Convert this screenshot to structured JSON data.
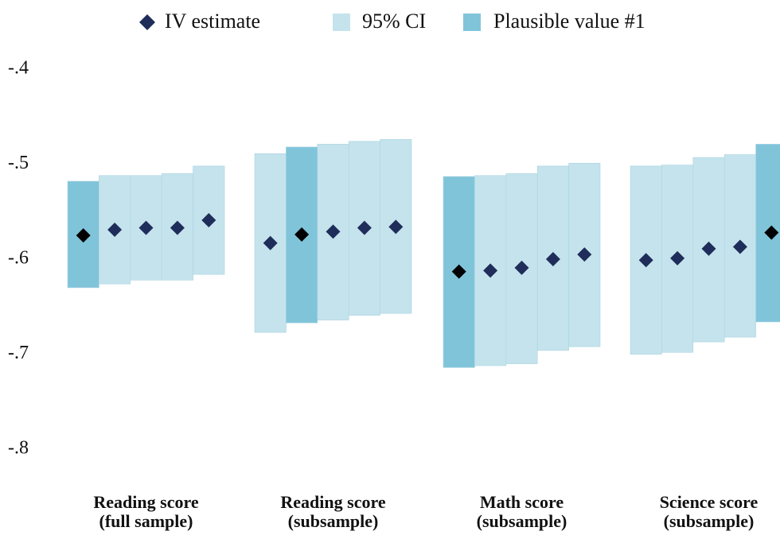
{
  "chart_data": {
    "type": "interval",
    "legend": [
      {
        "name": "IV estimate",
        "color": "#1f2d5a",
        "shape": "diamond"
      },
      {
        "name": "95% CI",
        "color": "#c5e3ec",
        "shape": "square"
      },
      {
        "name": "Plausible value #1",
        "color": "#80c4da",
        "shape": "square"
      }
    ],
    "highlight_marker_color": "#000000",
    "ylim": [
      -0.85,
      -0.375
    ],
    "yticks": [
      {
        "value": -0.4,
        "label": "-.4"
      },
      {
        "value": -0.5,
        "label": "-.5"
      },
      {
        "value": -0.6,
        "label": "-.6"
      },
      {
        "value": -0.7,
        "label": "-.7"
      },
      {
        "value": -0.8,
        "label": "-.8"
      }
    ],
    "grid": false,
    "groups": [
      {
        "label": [
          "Reading score",
          "(full sample)"
        ],
        "highlight": 0,
        "estimates": [
          -0.575,
          -0.569,
          -0.567,
          -0.567,
          -0.559
        ],
        "ci_lower": [
          -0.63,
          -0.626,
          -0.622,
          -0.622,
          -0.616
        ],
        "ci_upper": [
          -0.518,
          -0.512,
          -0.512,
          -0.51,
          -0.502
        ]
      },
      {
        "label": [
          "Reading score",
          "(subsample)"
        ],
        "highlight": 1,
        "estimates": [
          -0.583,
          -0.574,
          -0.571,
          -0.567,
          -0.566
        ],
        "ci_lower": [
          -0.677,
          -0.667,
          -0.664,
          -0.659,
          -0.657
        ],
        "ci_upper": [
          -0.489,
          -0.482,
          -0.479,
          -0.476,
          -0.474
        ]
      },
      {
        "label": [
          "Math score",
          "(subsample)"
        ],
        "highlight": 0,
        "estimates": [
          -0.613,
          -0.612,
          -0.609,
          -0.6,
          -0.595
        ],
        "ci_lower": [
          -0.714,
          -0.712,
          -0.71,
          -0.696,
          -0.692
        ],
        "ci_upper": [
          -0.513,
          -0.512,
          -0.51,
          -0.502,
          -0.499
        ]
      },
      {
        "label": [
          "Science score",
          "(subsample)"
        ],
        "highlight": 4,
        "estimates": [
          -0.601,
          -0.599,
          -0.589,
          -0.587,
          -0.572
        ],
        "ci_lower": [
          -0.7,
          -0.698,
          -0.687,
          -0.682,
          -0.666
        ],
        "ci_upper": [
          -0.502,
          -0.501,
          -0.493,
          -0.49,
          -0.479
        ]
      }
    ]
  }
}
